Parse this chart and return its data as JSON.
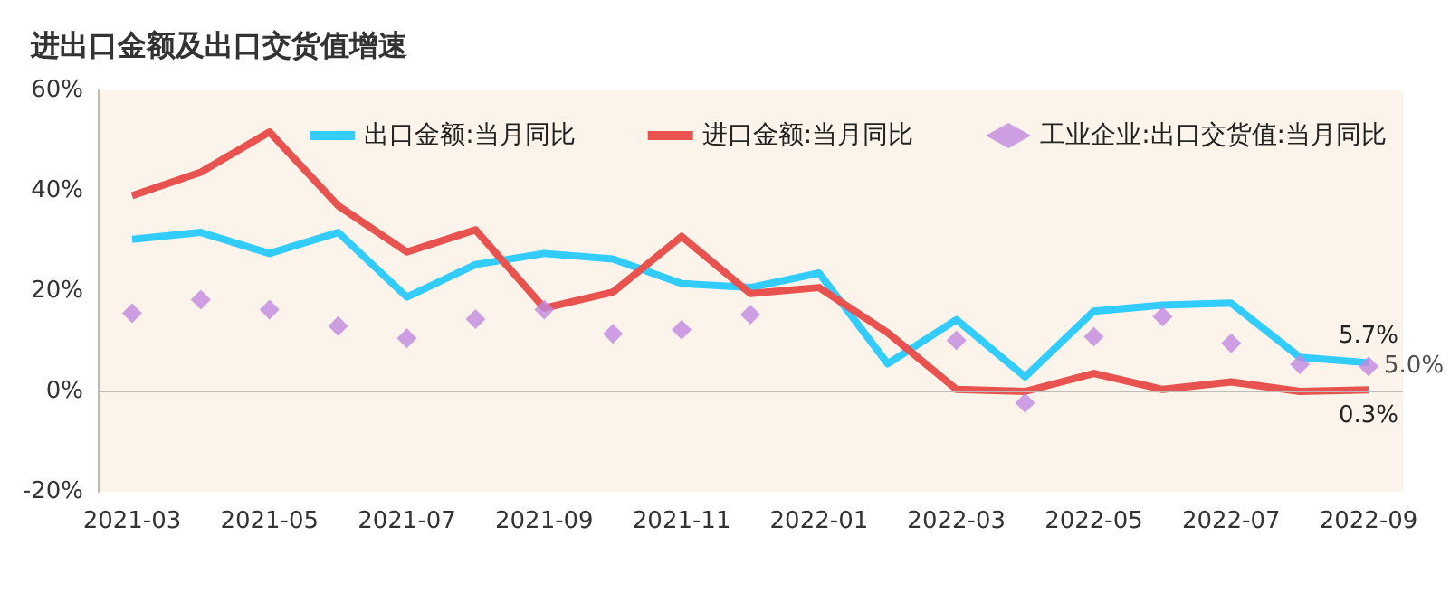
{
  "chart_data": {
    "type": "line",
    "title": "进出口金额及出口交货值增速",
    "categories": [
      "2021-03",
      null,
      "2021-05",
      null,
      "2021-07",
      null,
      "2021-09",
      null,
      "2021-11",
      null,
      "2022-01",
      null,
      "2022-03",
      null,
      "2022-05",
      null,
      "2022-07",
      null,
      "2022-09"
    ],
    "series": [
      {
        "name": "出口金额:当月同比",
        "type": "line",
        "color": "#33ccff",
        "marker": "none",
        "values": [
          30.3,
          31.7,
          27.5,
          31.7,
          18.8,
          25.3,
          27.5,
          26.4,
          21.5,
          20.7,
          23.6,
          5.5,
          14.3,
          2.9,
          16,
          17.2,
          17.6,
          6.8,
          5.7
        ],
        "value_labels": [
          null,
          null,
          null,
          null,
          null,
          null,
          null,
          null,
          null,
          null,
          null,
          null,
          null,
          null,
          null,
          null,
          null,
          null,
          "5.7%"
        ]
      },
      {
        "name": "进口金额:当月同比",
        "type": "line",
        "color": "#e8534f",
        "marker": "none",
        "values": [
          39,
          43.7,
          51.7,
          37,
          27.8,
          32.2,
          16.6,
          19.8,
          30.9,
          19.5,
          20.7,
          11.7,
          0.4,
          0,
          3.6,
          0.4,
          1.9,
          0,
          0.3
        ],
        "value_labels": [
          null,
          null,
          null,
          null,
          null,
          null,
          null,
          null,
          null,
          null,
          null,
          null,
          null,
          null,
          null,
          null,
          null,
          null,
          "0.3%"
        ]
      },
      {
        "name": "工业企业:出口交货值:当月同比",
        "type": "scatter",
        "color": "#c08ae0",
        "marker": "diamond",
        "values": [
          15.6,
          18.3,
          16.3,
          13,
          10.6,
          14.4,
          16.3,
          11.5,
          12.3,
          15.3,
          null,
          null,
          10.2,
          -2.3,
          10.9,
          14.9,
          9.6,
          5.4,
          5
        ],
        "value_labels": [
          null,
          null,
          null,
          null,
          null,
          null,
          null,
          null,
          null,
          null,
          null,
          null,
          null,
          null,
          null,
          null,
          null,
          null,
          "5.0%"
        ]
      }
    ],
    "ylim": [
      -20,
      60
    ],
    "yticks": [
      {
        "value": -20,
        "label": "-20%"
      },
      {
        "value": 0,
        "label": "0%"
      },
      {
        "value": 20,
        "label": "20%"
      },
      {
        "value": 40,
        "label": "40%"
      },
      {
        "value": 60,
        "label": "60%"
      }
    ],
    "ref_lines": [
      {
        "axis": "y",
        "value": 0,
        "color": "#bbbbbb"
      }
    ],
    "grid": false,
    "legend": "top right"
  }
}
